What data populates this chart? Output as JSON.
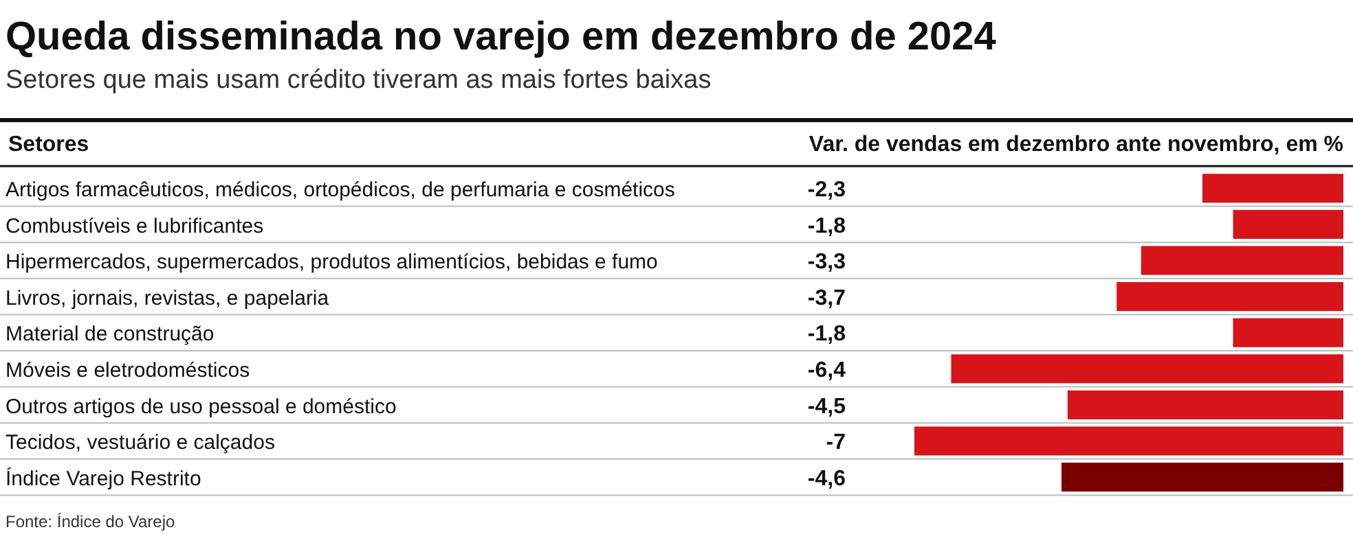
{
  "chart_data": {
    "type": "bar",
    "orientation": "horizontal",
    "title": "Queda disseminada no varejo em dezembro de 2024",
    "subtitle": "Setores que mais usam crédito tiveram as mais fortes baixas",
    "ylabel": "Setores",
    "xlabel": "Var. de vendas em dezembro ante novembro, em %",
    "categories": [
      "Artigos farmacêuticos, médicos, ortopédicos, de perfumaria e cosméticos",
      "Combustíveis e lubrificantes",
      "Hipermercados, supermercados, produtos alimentícios, bebidas e fumo",
      "Livros, jornais, revistas, e papelaria",
      "Material de construção",
      "Móveis e eletrodomésticos",
      "Outros artigos de uso pessoal e doméstico",
      "Tecidos, vestuário e calçados",
      "Índice Varejo Restrito"
    ],
    "values": [
      -2.3,
      -1.8,
      -3.3,
      -3.7,
      -1.8,
      -6.4,
      -4.5,
      -7,
      -4.6
    ],
    "value_labels": [
      "-2,3",
      "-1,8",
      "-3,3",
      "-3,7",
      "-1,8",
      "-6,4",
      "-4,5",
      "-7",
      "-4,6"
    ],
    "colors": [
      "#d7141a",
      "#d7141a",
      "#d7141a",
      "#d7141a",
      "#d7141a",
      "#d7141a",
      "#d7141a",
      "#d7141a",
      "#7a0000"
    ],
    "xlim": [
      -7,
      0
    ],
    "annotations": [
      "Fonte: Índice do Varejo"
    ]
  }
}
